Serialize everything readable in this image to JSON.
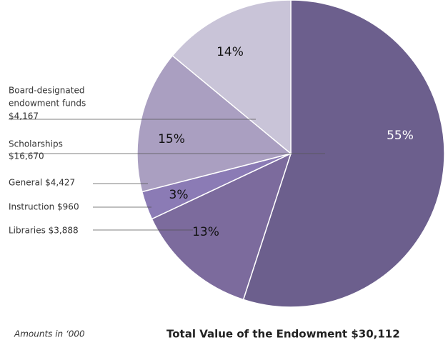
{
  "chart_data": {
    "type": "pie",
    "categories": [
      [
        "Scholarships",
        "$16,670"
      ],
      [
        "Libraries $3,888"
      ],
      [
        "Instruction $960"
      ],
      [
        "General $4,427"
      ],
      [
        "Board-designated",
        "endowment funds",
        "$4,167"
      ]
    ],
    "values": [
      55,
      13,
      3,
      15,
      14
    ],
    "value_labels": [
      "55%",
      "13%",
      "3%",
      "15%",
      "14%"
    ],
    "colors": [
      "#6c5f8d",
      "#7c6b9d",
      "#8b7bb5",
      "#aa9fc1",
      "#c9c4d8"
    ],
    "note": "Amounts in ‘000",
    "total": "Total Value of the Endowment $30,112"
  }
}
